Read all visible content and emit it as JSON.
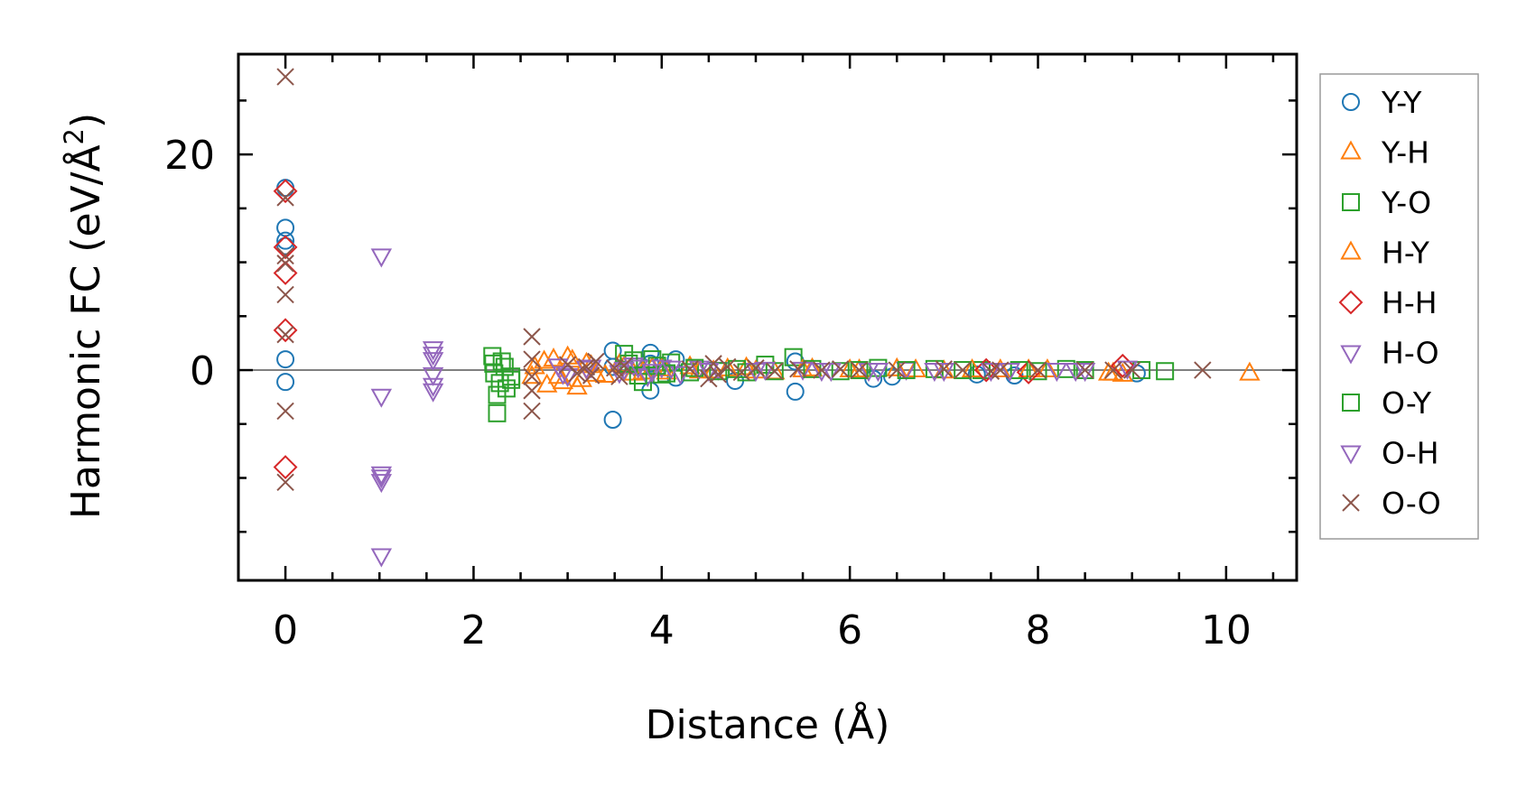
{
  "chart_data": {
    "type": "scatter",
    "xlabel": "Distance (Å)",
    "ylabel": "Harmonic FC (eV/Å",
    "ylabel_superscript": "2",
    "ylabel_suffix": ")",
    "xlim": [
      -0.5,
      10.75
    ],
    "ylim": [
      -19.5,
      29.3
    ],
    "xticks": [
      0,
      2,
      4,
      6,
      8,
      10
    ],
    "xtick_labels": [
      "0",
      "2",
      "4",
      "6",
      "8",
      "10"
    ],
    "yticks": [
      0,
      20
    ],
    "ytick_labels": [
      "0",
      "20"
    ],
    "x_minor_step": 0.5,
    "y_minor_step": 5,
    "zero_line": true,
    "legend_position": "right, outside",
    "series": [
      {
        "name": "Y-Y",
        "color": "#1f77b4",
        "marker": "circle",
        "x": [
          0,
          0,
          0,
          0,
          0,
          0,
          3.48,
          3.48,
          3.48,
          3.88,
          3.88,
          3.88,
          4.15,
          4.15,
          4.78,
          5.42,
          5.42,
          6.25,
          6.45,
          7.35,
          7.75,
          9.05
        ],
        "y": [
          16.9,
          13.2,
          12.0,
          1.0,
          -1.1,
          11.5,
          1.8,
          0.3,
          -4.6,
          1.6,
          -1.9,
          0.6,
          1.0,
          -0.7,
          -1.0,
          0.8,
          -2.0,
          -0.8,
          -0.6,
          -0.4,
          -0.5,
          -0.3
        ]
      },
      {
        "name": "Y-H",
        "color": "#ff7f0e",
        "marker": "triangle-up",
        "x": [
          2.65,
          2.78,
          2.85,
          2.95,
          3.05,
          3.1,
          3.2,
          3.3,
          3.55,
          3.7,
          3.9,
          4.05,
          4.3,
          4.55,
          4.9,
          5.2,
          5.6,
          6.0,
          6.5,
          7.0,
          7.6,
          8.1,
          8.75,
          8.9,
          10.25
        ],
        "y": [
          0.3,
          -1.4,
          1.0,
          -1.1,
          0.9,
          -1.6,
          0.6,
          -0.4,
          0.5,
          -0.3,
          0.2,
          -0.2,
          0.3,
          -0.1,
          0.2,
          -0.2,
          0.1,
          0.0,
          0.1,
          -0.1,
          0.0,
          0.0,
          -0.3,
          -0.4,
          -0.3
        ]
      },
      {
        "name": "Y-O",
        "color": "#2ca02c",
        "marker": "square",
        "x": [
          2.2,
          2.22,
          2.25,
          2.3,
          2.35,
          2.4,
          2.25,
          3.6,
          3.7,
          3.8,
          3.9,
          4.0,
          4.1,
          4.3,
          4.9,
          5.1,
          5.4,
          5.9,
          6.3,
          6.9,
          7.4,
          8.0,
          8.3,
          8.5,
          9.1,
          9.35
        ],
        "y": [
          1.3,
          -0.3,
          -2.3,
          0.8,
          -1.7,
          -0.6,
          -4.0,
          1.5,
          0.9,
          -1.1,
          1.0,
          -0.4,
          0.7,
          -0.2,
          -0.2,
          0.5,
          1.2,
          -0.1,
          0.2,
          0.1,
          0.0,
          -0.1,
          0.1,
          0.0,
          0.0,
          -0.1
        ]
      },
      {
        "name": "H-Y",
        "color": "#ff7f0e",
        "marker": "triangle-up",
        "x": [
          2.62,
          2.75,
          2.9,
          3.0,
          3.15,
          3.25,
          3.4,
          3.6,
          3.8,
          4.0,
          4.4,
          4.7,
          5.0,
          5.5,
          6.1,
          6.7,
          7.3,
          7.9,
          8.8
        ],
        "y": [
          -0.6,
          0.8,
          -0.6,
          1.2,
          -0.9,
          0.4,
          -0.5,
          0.3,
          -0.2,
          0.1,
          -0.1,
          0.1,
          -0.1,
          0.0,
          0.0,
          0.0,
          0.0,
          0.0,
          -0.3
        ]
      },
      {
        "name": "H-H",
        "color": "#d62728",
        "marker": "diamond",
        "x": [
          0,
          0,
          0,
          0,
          0,
          7.45,
          7.9,
          8.9
        ],
        "y": [
          16.6,
          11.4,
          9.0,
          3.7,
          -9.0,
          0.0,
          -0.2,
          0.4
        ]
      },
      {
        "name": "H-O",
        "color": "#9467bd",
        "marker": "triangle-down",
        "x": [
          1.02,
          1.02,
          1.02,
          1.02,
          1.57,
          1.57,
          1.57,
          1.57,
          2.9,
          3.0,
          3.25,
          3.6,
          3.7,
          3.85,
          4.0,
          4.2,
          4.4,
          4.6,
          5.0,
          5.5,
          5.8,
          6.2,
          6.6,
          6.9,
          7.5,
          8.2,
          8.5,
          8.95
        ],
        "y": [
          10.6,
          -2.4,
          -9.9,
          -17.2,
          2.0,
          1.5,
          -0.4,
          -1.9,
          0.4,
          -0.5,
          0.3,
          0.1,
          0.5,
          -0.5,
          0.3,
          -0.3,
          0.2,
          0.1,
          0.0,
          0.1,
          0.0,
          0.0,
          0.1,
          0.0,
          0.0,
          0.0,
          0.0,
          0.2
        ]
      },
      {
        "name": "O-Y",
        "color": "#2ca02c",
        "marker": "square",
        "x": [
          2.21,
          2.28,
          2.33,
          2.4,
          3.65,
          3.75,
          3.95,
          4.05,
          4.35,
          4.6,
          4.8,
          5.2,
          5.6,
          6.1,
          6.6,
          7.2,
          7.8
        ],
        "y": [
          0.6,
          -1.2,
          0.3,
          -0.9,
          0.6,
          -0.5,
          0.4,
          -0.3,
          0.2,
          -0.1,
          0.1,
          -0.1,
          0.1,
          0.0,
          0.0,
          0.0,
          0.0
        ]
      },
      {
        "name": "O-H",
        "color": "#9467bd",
        "marker": "triangle-down",
        "x": [
          1.02,
          1.02,
          1.57,
          1.57,
          2.95,
          3.2,
          3.55,
          3.75,
          3.9,
          4.1,
          4.5,
          5.1,
          5.7,
          6.3,
          7.0,
          7.7,
          8.4
        ],
        "y": [
          -9.6,
          -10.3,
          1.0,
          -1.4,
          -0.3,
          0.2,
          -0.2,
          0.3,
          -0.1,
          0.2,
          0.0,
          0.1,
          0.0,
          0.0,
          0.0,
          0.0,
          0.0
        ]
      },
      {
        "name": "O-O",
        "color": "#8c564b",
        "marker": "x",
        "x": [
          0,
          0,
          0,
          0,
          0,
          0,
          0,
          0,
          2.62,
          2.62,
          2.62,
          2.62,
          2.62,
          3.0,
          3.1,
          3.2,
          3.25,
          3.3,
          3.5,
          3.55,
          3.6,
          4.3,
          4.5,
          4.55,
          4.6,
          4.7,
          4.85,
          5.0,
          5.2,
          5.45,
          5.7,
          5.9,
          6.1,
          6.5,
          7.0,
          7.2,
          7.5,
          7.6,
          8.0,
          8.5,
          8.8,
          9.0,
          9.75
        ],
        "y": [
          27.2,
          16.0,
          10.6,
          9.9,
          7.0,
          3.3,
          -3.8,
          -10.4,
          3.1,
          1.0,
          -0.6,
          -1.9,
          -3.8,
          0.5,
          -0.3,
          0.3,
          -0.5,
          0.8,
          0.2,
          -0.6,
          0.4,
          0.1,
          -0.8,
          0.6,
          -0.4,
          0.3,
          -0.2,
          0.2,
          -0.1,
          0.1,
          0.0,
          0.1,
          0.0,
          0.0,
          0.1,
          0.0,
          -0.1,
          0.0,
          0.0,
          0.0,
          0.0,
          0.0,
          0.0
        ]
      }
    ]
  }
}
